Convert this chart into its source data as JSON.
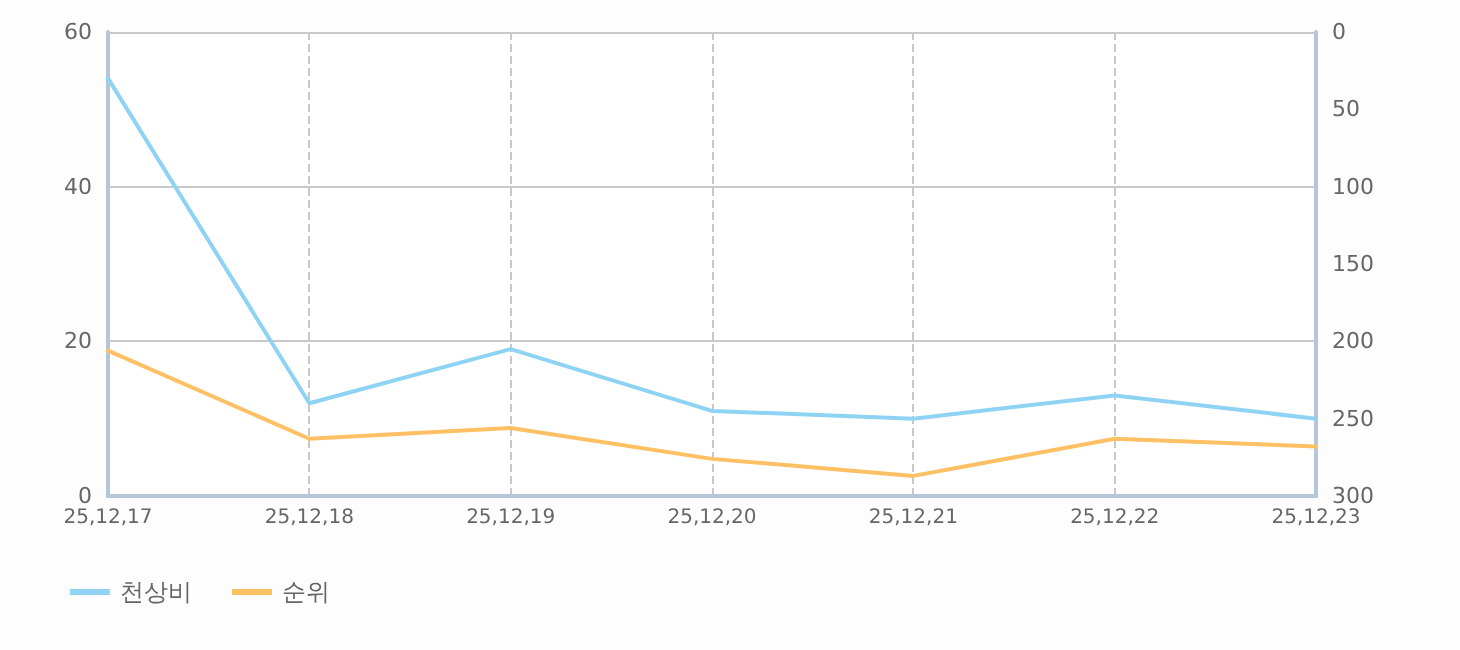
{
  "chart_data": {
    "type": "line",
    "categories": [
      "25,12,17",
      "25,12,18",
      "25,12,19",
      "25,12,20",
      "25,12,21",
      "25,12,22",
      "25,12,23"
    ],
    "series": [
      {
        "name": "천상비",
        "color": "#8fd3f4",
        "values": [
          54,
          12,
          19,
          11,
          10,
          13,
          10
        ]
      },
      {
        "name": "순위",
        "color": "#fdc064",
        "axis": "y2",
        "values": [
          206,
          263,
          256,
          276,
          287,
          263,
          268
        ]
      }
    ],
    "ylim": [
      0,
      60
    ],
    "yticks": [
      0,
      20,
      40,
      60
    ],
    "y2lim": [
      300,
      0
    ],
    "y2ticks": [
      0,
      50,
      100,
      150,
      200,
      250,
      300
    ],
    "grid": true,
    "legend": "bottom left",
    "marker": "none",
    "line_style": "solid"
  }
}
